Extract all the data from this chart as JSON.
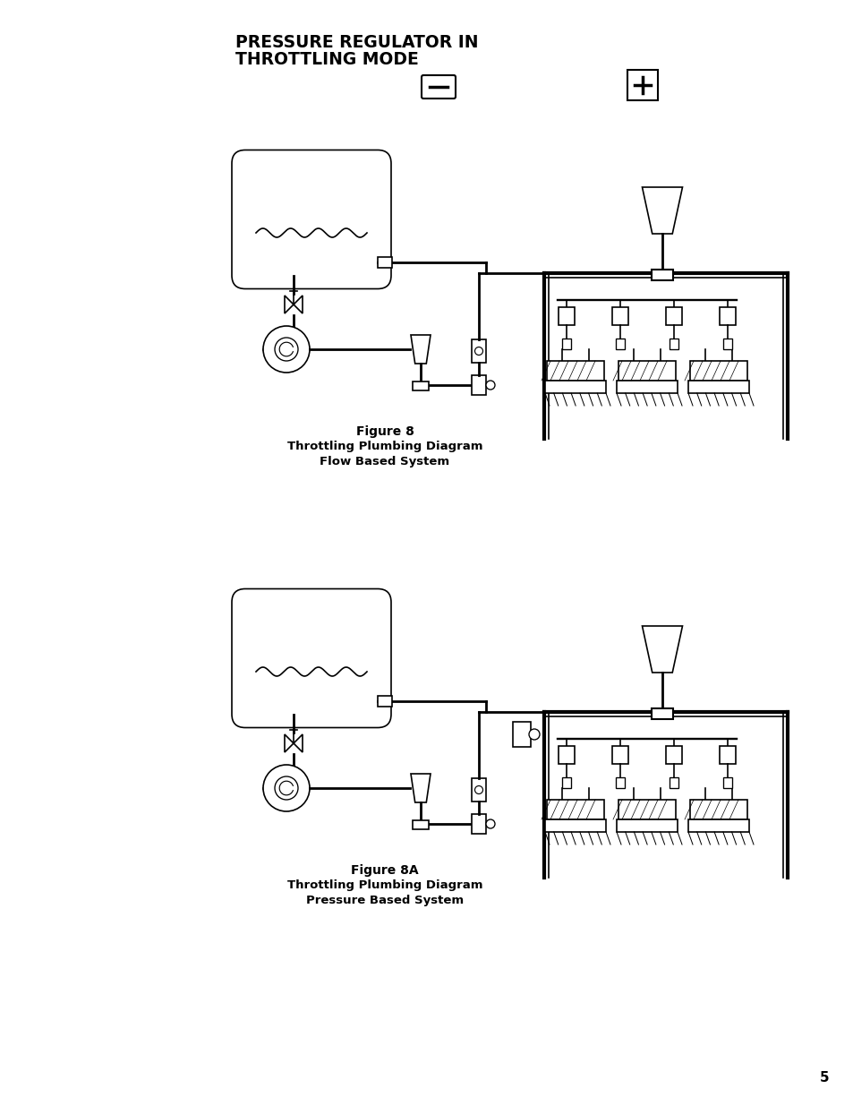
{
  "fig_width": 9.54,
  "fig_height": 12.35,
  "background_color": "#ffffff",
  "title_line1": "PRESSURE REGULATOR IN",
  "title_line2": "THROTTLING MODE",
  "fig8_cap1": "Figure 8",
  "fig8_cap2": "Throttling Plumbing Diagram",
  "fig8_cap3": "Flow Based System",
  "fig8a_cap1": "Figure 8A",
  "fig8a_cap2": "Throttling Plumbing Diagram",
  "fig8a_cap3": "Pressure Based System",
  "page_number": "5"
}
